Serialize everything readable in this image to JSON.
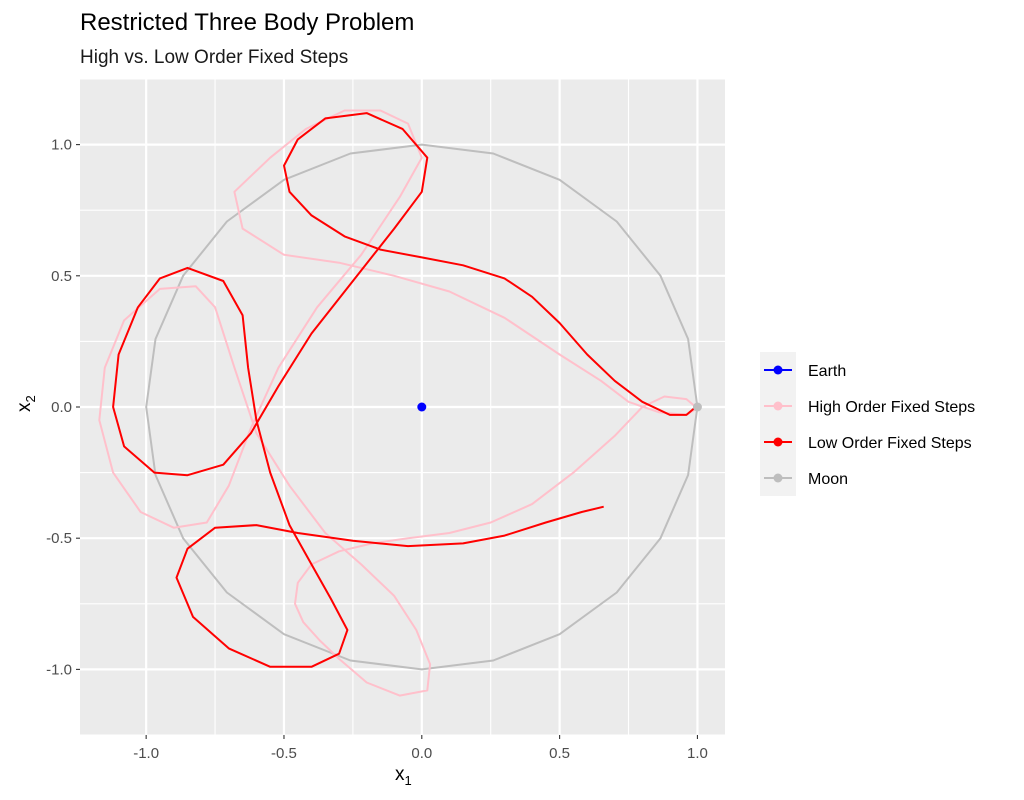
{
  "chart_data": {
    "type": "line",
    "title": "Restricted Three Body Problem",
    "subtitle": "High vs. Low Order Fixed Steps",
    "xlabel": "x",
    "xlabel_sub": "1",
    "ylabel": "x",
    "ylabel_sub": "2",
    "xlim": [
      -1.24,
      1.1
    ],
    "ylim": [
      -1.25,
      1.25
    ],
    "xticks": [
      -1.0,
      -0.5,
      0.0,
      0.5,
      1.0
    ],
    "xtick_labels": [
      "-1.0",
      "-0.5",
      "0.0",
      "0.5",
      "1.0"
    ],
    "yticks": [
      -1.0,
      -0.5,
      0.0,
      0.5,
      1.0
    ],
    "ytick_labels": [
      "-1.0",
      "-0.5",
      "0.0",
      "0.5",
      "1.0"
    ],
    "grid": true,
    "legend_position": "right",
    "colors": {
      "panel": "#ebebeb",
      "grid": "#ffffff",
      "earth": "#0000ff",
      "high": "#ffc0cb",
      "low": "#ff0000",
      "moon": "#bebebe"
    },
    "legend": [
      {
        "label": "Earth",
        "color": "#0000ff"
      },
      {
        "label": "High Order Fixed Steps",
        "color": "#ffc0cb"
      },
      {
        "label": "Low Order Fixed Steps",
        "color": "#ff0000"
      },
      {
        "label": "Moon",
        "color": "#bebebe"
      }
    ],
    "series": [
      {
        "name": "Moon",
        "color": "#bebebe",
        "points": [
          [
            1.0,
            0.0
          ],
          [
            0.966,
            0.259
          ],
          [
            0.866,
            0.5
          ],
          [
            0.707,
            0.707
          ],
          [
            0.5,
            0.866
          ],
          [
            0.259,
            0.966
          ],
          [
            0.0,
            1.0
          ],
          [
            -0.259,
            0.966
          ],
          [
            -0.5,
            0.866
          ],
          [
            -0.707,
            0.707
          ],
          [
            -0.866,
            0.5
          ],
          [
            -0.966,
            0.259
          ],
          [
            -1.0,
            0.0
          ],
          [
            -0.966,
            -0.259
          ],
          [
            -0.866,
            -0.5
          ],
          [
            -0.707,
            -0.707
          ],
          [
            -0.5,
            -0.866
          ],
          [
            -0.259,
            -0.966
          ],
          [
            0.0,
            -1.0
          ],
          [
            0.259,
            -0.966
          ],
          [
            0.5,
            -0.866
          ],
          [
            0.707,
            -0.707
          ],
          [
            0.866,
            -0.5
          ],
          [
            0.966,
            -0.259
          ],
          [
            1.0,
            0.0
          ]
        ],
        "current": [
          1.0,
          0.0
        ]
      },
      {
        "name": "High Order Fixed Steps",
        "color": "#ffc0cb",
        "points": [
          [
            0.994,
            0.0
          ],
          [
            0.96,
            0.03
          ],
          [
            0.88,
            0.04
          ],
          [
            0.8,
            0.0
          ],
          [
            0.7,
            -0.11
          ],
          [
            0.55,
            -0.25
          ],
          [
            0.4,
            -0.37
          ],
          [
            0.25,
            -0.44
          ],
          [
            0.1,
            -0.48
          ],
          [
            -0.05,
            -0.5
          ],
          [
            -0.18,
            -0.52
          ],
          [
            -0.3,
            -0.55
          ],
          [
            -0.4,
            -0.6
          ],
          [
            -0.45,
            -0.67
          ],
          [
            -0.46,
            -0.75
          ],
          [
            -0.43,
            -0.82
          ],
          [
            -0.37,
            -0.89
          ],
          [
            -0.3,
            -0.96
          ],
          [
            -0.2,
            -1.05
          ],
          [
            -0.08,
            -1.1
          ],
          [
            0.02,
            -1.08
          ],
          [
            0.03,
            -0.98
          ],
          [
            -0.02,
            -0.85
          ],
          [
            -0.1,
            -0.72
          ],
          [
            -0.22,
            -0.6
          ],
          [
            -0.35,
            -0.48
          ],
          [
            -0.48,
            -0.3
          ],
          [
            -0.6,
            -0.1
          ],
          [
            -0.68,
            0.15
          ],
          [
            -0.75,
            0.38
          ],
          [
            -0.82,
            0.46
          ],
          [
            -0.95,
            0.45
          ],
          [
            -1.08,
            0.33
          ],
          [
            -1.15,
            0.15
          ],
          [
            -1.17,
            -0.05
          ],
          [
            -1.12,
            -0.25
          ],
          [
            -1.02,
            -0.4
          ],
          [
            -0.9,
            -0.46
          ],
          [
            -0.78,
            -0.44
          ],
          [
            -0.7,
            -0.3
          ],
          [
            -0.62,
            -0.08
          ],
          [
            -0.52,
            0.15
          ],
          [
            -0.38,
            0.38
          ],
          [
            -0.22,
            0.58
          ],
          [
            -0.08,
            0.8
          ],
          [
            0.0,
            0.95
          ],
          [
            -0.05,
            1.08
          ],
          [
            -0.15,
            1.13
          ],
          [
            -0.28,
            1.13
          ],
          [
            -0.42,
            1.06
          ],
          [
            -0.55,
            0.95
          ],
          [
            -0.68,
            0.82
          ],
          [
            -0.65,
            0.68
          ],
          [
            -0.5,
            0.58
          ],
          [
            -0.3,
            0.55
          ],
          [
            -0.1,
            0.5
          ],
          [
            0.1,
            0.44
          ],
          [
            0.3,
            0.34
          ],
          [
            0.5,
            0.2
          ],
          [
            0.65,
            0.1
          ],
          [
            0.75,
            0.02
          ],
          [
            0.86,
            -0.02
          ],
          [
            0.96,
            -0.03
          ],
          [
            0.99,
            -0.01
          ]
        ]
      },
      {
        "name": "Low Order Fixed Steps",
        "color": "#ff0000",
        "points": [
          [
            0.994,
            0.0
          ],
          [
            0.96,
            -0.03
          ],
          [
            0.9,
            -0.03
          ],
          [
            0.8,
            0.02
          ],
          [
            0.7,
            0.1
          ],
          [
            0.6,
            0.2
          ],
          [
            0.5,
            0.32
          ],
          [
            0.4,
            0.42
          ],
          [
            0.3,
            0.49
          ],
          [
            0.15,
            0.54
          ],
          [
            0.0,
            0.57
          ],
          [
            -0.15,
            0.6
          ],
          [
            -0.28,
            0.65
          ],
          [
            -0.4,
            0.73
          ],
          [
            -0.48,
            0.82
          ],
          [
            -0.5,
            0.92
          ],
          [
            -0.45,
            1.02
          ],
          [
            -0.35,
            1.1
          ],
          [
            -0.2,
            1.12
          ],
          [
            -0.07,
            1.06
          ],
          [
            0.02,
            0.95
          ],
          [
            0.0,
            0.82
          ],
          [
            -0.1,
            0.68
          ],
          [
            -0.25,
            0.48
          ],
          [
            -0.4,
            0.28
          ],
          [
            -0.52,
            0.08
          ],
          [
            -0.62,
            -0.1
          ],
          [
            -0.72,
            -0.22
          ],
          [
            -0.85,
            -0.26
          ],
          [
            -0.97,
            -0.25
          ],
          [
            -1.08,
            -0.15
          ],
          [
            -1.12,
            0.0
          ],
          [
            -1.1,
            0.2
          ],
          [
            -1.03,
            0.38
          ],
          [
            -0.95,
            0.49
          ],
          [
            -0.85,
            0.53
          ],
          [
            -0.72,
            0.48
          ],
          [
            -0.65,
            0.35
          ],
          [
            -0.63,
            0.15
          ],
          [
            -0.6,
            -0.05
          ],
          [
            -0.55,
            -0.25
          ],
          [
            -0.48,
            -0.45
          ],
          [
            -0.4,
            -0.6
          ],
          [
            -0.33,
            -0.73
          ],
          [
            -0.27,
            -0.85
          ],
          [
            -0.3,
            -0.94
          ],
          [
            -0.4,
            -0.99
          ],
          [
            -0.55,
            -0.99
          ],
          [
            -0.7,
            -0.92
          ],
          [
            -0.83,
            -0.8
          ],
          [
            -0.89,
            -0.65
          ],
          [
            -0.85,
            -0.54
          ],
          [
            -0.75,
            -0.46
          ],
          [
            -0.6,
            -0.45
          ],
          [
            -0.45,
            -0.48
          ],
          [
            -0.25,
            -0.51
          ],
          [
            -0.05,
            -0.53
          ],
          [
            0.15,
            -0.52
          ],
          [
            0.3,
            -0.49
          ],
          [
            0.45,
            -0.44
          ],
          [
            0.58,
            -0.4
          ],
          [
            0.66,
            -0.38
          ]
        ]
      },
      {
        "name": "Earth",
        "color": "#0000ff",
        "points": [
          [
            0.0,
            0.0
          ]
        ]
      }
    ]
  }
}
